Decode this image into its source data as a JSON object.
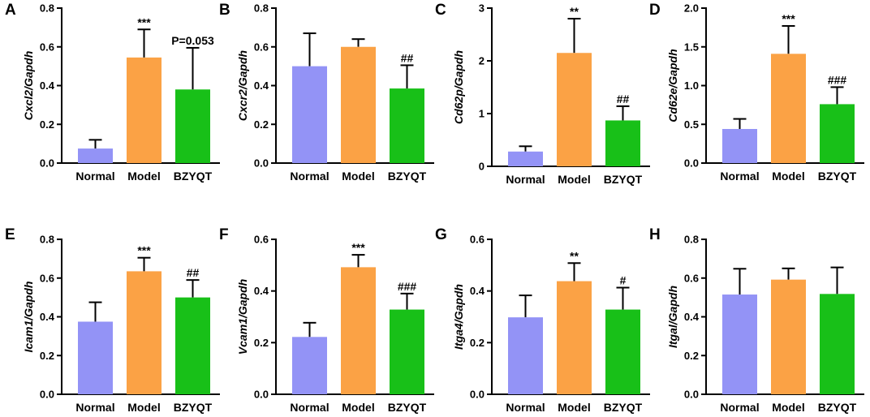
{
  "chart_data": [
    {
      "panel": "A",
      "type": "bar",
      "ylabel": "Cxcl2/Gapdh",
      "categories": [
        "Normal",
        "Model",
        "BZYQT"
      ],
      "values": [
        0.075,
        0.545,
        0.38
      ],
      "errors": [
        0.045,
        0.145,
        0.215
      ],
      "annotations": [
        "",
        "***",
        "P=0.053"
      ],
      "ylim": [
        0,
        0.8
      ],
      "yticks": [
        "0.0",
        "0.2",
        "0.4",
        "0.6",
        "0.8"
      ]
    },
    {
      "panel": "B",
      "type": "bar",
      "ylabel": "Cxcr2/Gapdh",
      "categories": [
        "Normal",
        "Model",
        "BZYQT"
      ],
      "values": [
        0.5,
        0.6,
        0.385
      ],
      "errors": [
        0.17,
        0.04,
        0.12
      ],
      "annotations": [
        "",
        "",
        "##"
      ],
      "ylim": [
        0,
        0.8
      ],
      "yticks": [
        "0.0",
        "0.2",
        "0.4",
        "0.6",
        "0.8"
      ]
    },
    {
      "panel": "C",
      "type": "bar",
      "ylabel": "Cd62p/Gapdh",
      "categories": [
        "Normal",
        "Model",
        "BZYQT"
      ],
      "values": [
        0.28,
        2.15,
        0.87
      ],
      "errors": [
        0.1,
        0.65,
        0.27
      ],
      "annotations": [
        "",
        "**",
        "##"
      ],
      "ylim": [
        0,
        3
      ],
      "yticks": [
        "0",
        "1",
        "2",
        "3"
      ]
    },
    {
      "panel": "D",
      "type": "bar",
      "ylabel": "Cd62e/Gapdh",
      "categories": [
        "Normal",
        "Model",
        "BZYQT"
      ],
      "values": [
        0.44,
        1.41,
        0.76
      ],
      "errors": [
        0.13,
        0.36,
        0.22
      ],
      "annotations": [
        "",
        "***",
        "###"
      ],
      "ylim": [
        0,
        2.0
      ],
      "yticks": [
        "0.0",
        "0.5",
        "1.0",
        "1.5",
        "2.0"
      ]
    },
    {
      "panel": "E",
      "type": "bar",
      "ylabel": "Icam1/Gapdh",
      "categories": [
        "Normal",
        "Model",
        "BZYQT"
      ],
      "values": [
        0.375,
        0.635,
        0.5
      ],
      "errors": [
        0.1,
        0.07,
        0.09
      ],
      "annotations": [
        "",
        "***",
        "##"
      ],
      "ylim": [
        0,
        0.8
      ],
      "yticks": [
        "0.0",
        "0.2",
        "0.4",
        "0.6",
        "0.8"
      ]
    },
    {
      "panel": "F",
      "type": "bar",
      "ylabel": "Vcam1/Gapdh",
      "categories": [
        "Normal",
        "Model",
        "BZYQT"
      ],
      "values": [
        0.222,
        0.492,
        0.328
      ],
      "errors": [
        0.055,
        0.048,
        0.062
      ],
      "annotations": [
        "",
        "***",
        "###"
      ],
      "ylim": [
        0,
        0.6
      ],
      "yticks": [
        "0.0",
        "0.2",
        "0.4",
        "0.6"
      ]
    },
    {
      "panel": "G",
      "type": "bar",
      "ylabel": "Itga4/Gapdh",
      "categories": [
        "Normal",
        "Model",
        "BZYQT"
      ],
      "values": [
        0.298,
        0.438,
        0.328
      ],
      "errors": [
        0.085,
        0.07,
        0.085
      ],
      "annotations": [
        "",
        "**",
        "#"
      ],
      "ylim": [
        0,
        0.6
      ],
      "yticks": [
        "0.0",
        "0.2",
        "0.4",
        "0.6"
      ]
    },
    {
      "panel": "H",
      "type": "bar",
      "ylabel": "Itgal/Gapdh",
      "categories": [
        "Normal",
        "Model",
        "BZYQT"
      ],
      "values": [
        0.515,
        0.592,
        0.518
      ],
      "errors": [
        0.133,
        0.058,
        0.137
      ],
      "annotations": [
        "",
        "",
        ""
      ],
      "ylim": [
        0,
        0.8
      ],
      "yticks": [
        "0.0",
        "0.2",
        "0.4",
        "0.6",
        "0.8"
      ]
    }
  ],
  "colors": {
    "normal": "#9393f6",
    "model": "#fba245",
    "bzyqt": "#18c018"
  }
}
